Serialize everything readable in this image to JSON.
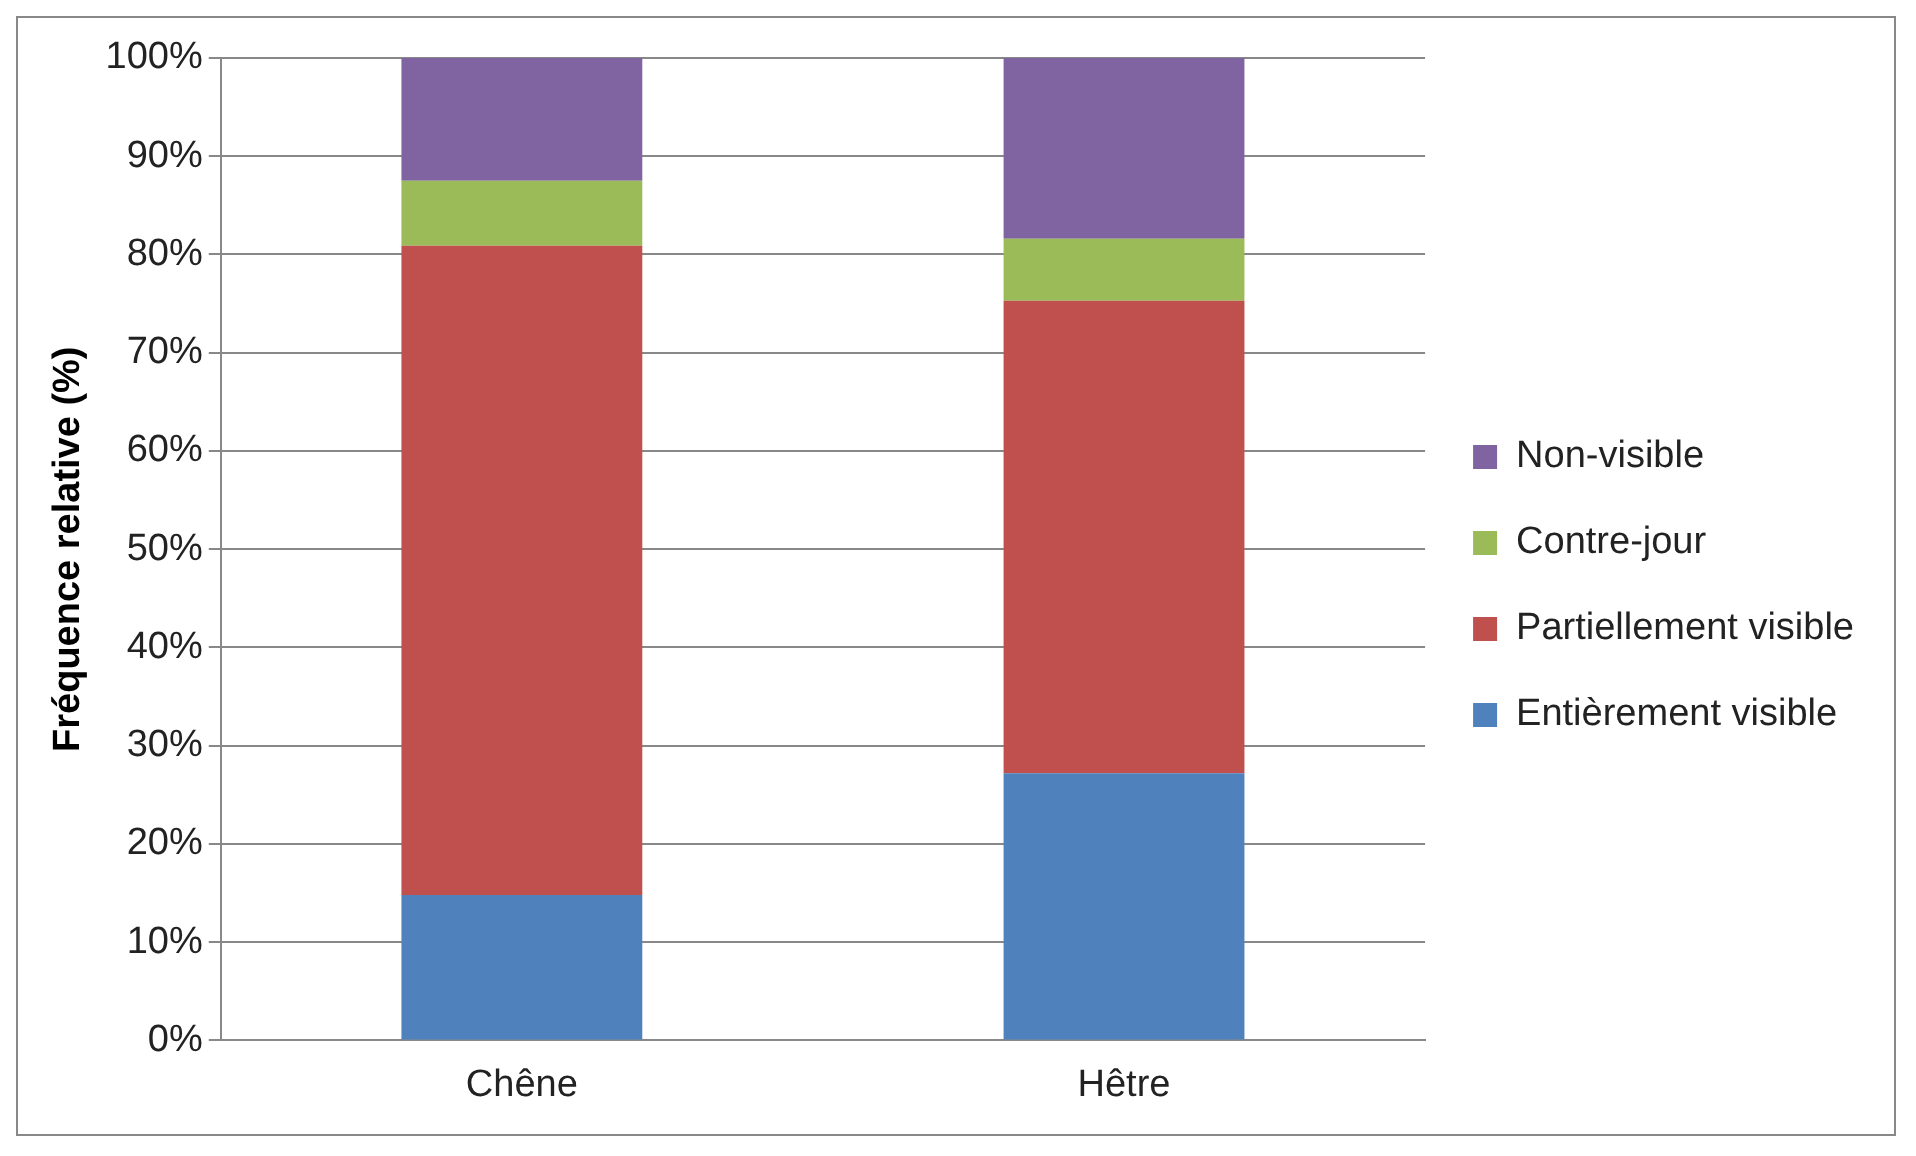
{
  "chart_data": {
    "type": "bar",
    "stacked": true,
    "ylabel": "Fréquence relative (%)",
    "categories": [
      "Chêne",
      "Hêtre"
    ],
    "series": [
      {
        "name": "Entièrement visible",
        "color": "#4f81bd",
        "values": [
          14.8,
          27.2
        ]
      },
      {
        "name": "Partiellement visible",
        "color": "#c0504d",
        "values": [
          66.1,
          48.1
        ]
      },
      {
        "name": "Contre-jour",
        "color": "#9bbb59",
        "values": [
          6.6,
          6.3
        ]
      },
      {
        "name": "Non-visible",
        "color": "#8064a2",
        "values": [
          12.5,
          18.4
        ]
      }
    ],
    "ylim": [
      0,
      100
    ],
    "yticks": [
      {
        "value": 0,
        "label": "0%"
      },
      {
        "value": 10,
        "label": "10%"
      },
      {
        "value": 20,
        "label": "20%"
      },
      {
        "value": 30,
        "label": "30%"
      },
      {
        "value": 40,
        "label": "40%"
      },
      {
        "value": 50,
        "label": "50%"
      },
      {
        "value": 60,
        "label": "60%"
      },
      {
        "value": 70,
        "label": "70%"
      },
      {
        "value": 80,
        "label": "80%"
      },
      {
        "value": 90,
        "label": "90%"
      },
      {
        "value": 100,
        "label": "100%"
      }
    ],
    "grid": "y",
    "legend": "right"
  }
}
